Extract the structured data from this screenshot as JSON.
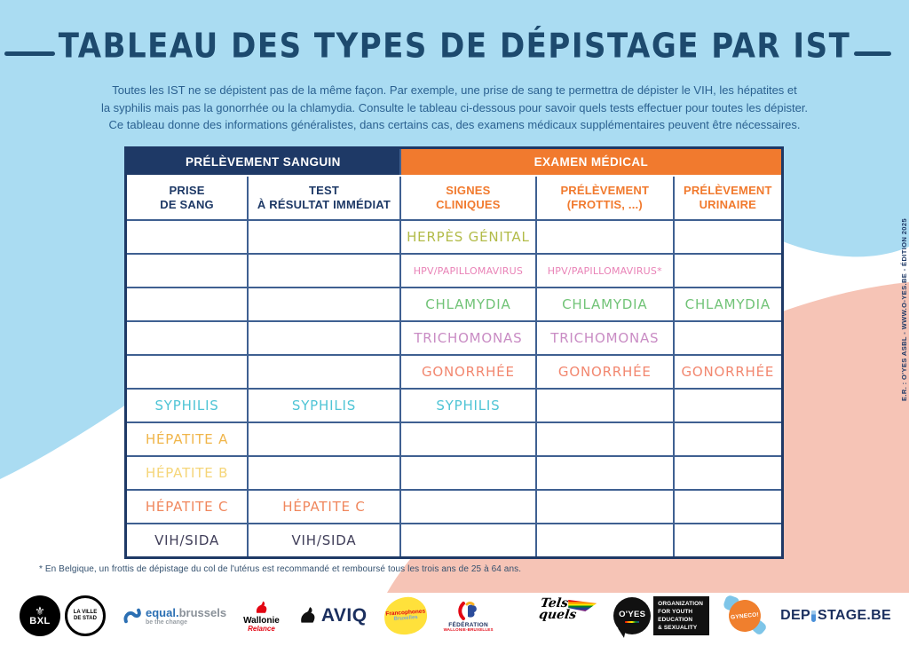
{
  "title": "TABLEAU DES TYPES DE DÉPISTAGE PAR IST",
  "intro": {
    "line1": "Toutes les IST ne se dépistent pas de la même façon. Par exemple, une prise de sang te permettra de dépister le VIH, les hépatites et",
    "line2": "la syphilis mais pas la gonorrhée ou la chlamydia. Consulte le tableau ci-dessous pour savoir quels tests effectuer pour toutes les dépister.",
    "line3": "Ce tableau donne des informations généralistes, dans certains cas, des examens médicaux supplémentaires peuvent être nécessaires."
  },
  "table": {
    "group_headers": [
      {
        "label": "PRÉLÈVEMENT SANGUIN"
      },
      {
        "label": "EXAMEN MÉDICAL"
      }
    ],
    "column_headers": [
      {
        "line1": "PRISE",
        "line2": "DE SANG"
      },
      {
        "line1": "TEST",
        "line2": "À RÉSULTAT IMMÉDIAT"
      },
      {
        "line1": "SIGNES",
        "line2": "CLINIQUES"
      },
      {
        "line1": "PRÉLÈVEMENT",
        "line2": "(FROTTIS, ...)"
      },
      {
        "line1": "PRÉLÈVEMENT",
        "line2": "URINAIRE"
      }
    ],
    "rows": [
      {
        "cells": [
          {},
          {},
          {
            "text": "HERPÈS GÉNITAL",
            "color": "herpes"
          },
          {},
          {}
        ]
      },
      {
        "cells": [
          {},
          {},
          {
            "text": "HPV/PAPILLOMAVIRUS",
            "color": "hpv",
            "small": true
          },
          {
            "text": "HPV/PAPILLOMAVIRUS*",
            "color": "hpv",
            "small": true
          },
          {}
        ]
      },
      {
        "cells": [
          {},
          {},
          {
            "text": "CHLAMYDIA",
            "color": "chlamydia"
          },
          {
            "text": "CHLAMYDIA",
            "color": "chlamydia"
          },
          {
            "text": "CHLAMYDIA",
            "color": "chlamydia"
          }
        ]
      },
      {
        "cells": [
          {},
          {},
          {
            "text": "TRICHOMONAS",
            "color": "trichomonas"
          },
          {
            "text": "TRICHOMONAS",
            "color": "trichomonas"
          },
          {}
        ]
      },
      {
        "cells": [
          {},
          {},
          {
            "text": "GONORRHÉE",
            "color": "gonorrhee"
          },
          {
            "text": "GONORRHÉE",
            "color": "gonorrhee"
          },
          {
            "text": "GONORRHÉE",
            "color": "gonorrhee"
          }
        ]
      },
      {
        "cells": [
          {
            "text": "SYPHILIS",
            "color": "syphilis"
          },
          {
            "text": "SYPHILIS",
            "color": "syphilis"
          },
          {
            "text": "SYPHILIS",
            "color": "syphilis"
          },
          {},
          {}
        ]
      },
      {
        "cells": [
          {
            "text": "HÉPATITE A",
            "color": "hepatite_a"
          },
          {},
          {},
          {},
          {}
        ]
      },
      {
        "cells": [
          {
            "text": "HÉPATITE B",
            "color": "hepatite_b"
          },
          {},
          {},
          {},
          {}
        ]
      },
      {
        "cells": [
          {
            "text": "HÉPATITE C",
            "color": "hepatite_c"
          },
          {
            "text": "HÉPATITE C",
            "color": "hepatite_c"
          },
          {},
          {},
          {}
        ]
      },
      {
        "cells": [
          {
            "text": "VIH/SIDA",
            "color": "vih"
          },
          {
            "text": "VIH/SIDA",
            "color": "vih"
          },
          {},
          {},
          {}
        ]
      }
    ]
  },
  "footnote": "* En Belgique, un frottis de dépistage du col de l'utérus est recommandé et remboursé tous les trois ans de 25 à 64 ans.",
  "credit": "E.R. : O'YES ASBL - WWW.O-YES.BE - ÉDITION 2025",
  "colors": {
    "background_blue": "#aadcf2",
    "background_salmon": "#f6c4b6",
    "navy": "#1e3966",
    "orange": "#f17a2e",
    "herpes": "#b2bb48",
    "hpv": "#e983b7",
    "chlamydia": "#71c377",
    "trichomonas": "#c98cc4",
    "gonorrhee": "#f2876f",
    "syphilis": "#4ec4d5",
    "hepatite_a": "#f0b54a",
    "hepatite_b": "#f5d578",
    "hepatite_c": "#f0875d",
    "vih": "#403e59"
  },
  "logos": {
    "bxl": {
      "text": "BXL",
      "ring_line1": "LA VILLE",
      "ring_line2": "DE STAD"
    },
    "equal": {
      "name_bold": "equal.",
      "name_grey": "brussels",
      "tagline": "be the change"
    },
    "wallonie": {
      "name": "Wallonie",
      "sub": "Relance"
    },
    "aviq": {
      "name": "AVIQ"
    },
    "francophones": {
      "line1": "Francophones",
      "line2": "Bruxelles"
    },
    "federation": {
      "line1": "FÉDÉRATION",
      "line2": "WALLONIE-BRUXELLES"
    },
    "telsquels": {
      "line1": "Tels",
      "line2": "quels"
    },
    "oyes": {
      "circle": "O'YES",
      "box_line1": "ORGANIZATION",
      "box_line2": "FOR YOUTH",
      "box_line3": "EDUCATION",
      "box_line4": "& SEXUALITY"
    },
    "gyneco": {
      "text": "GYNECO!"
    },
    "depistage": {
      "prefix": "DEP",
      "suffix": "STAGE.BE"
    }
  }
}
